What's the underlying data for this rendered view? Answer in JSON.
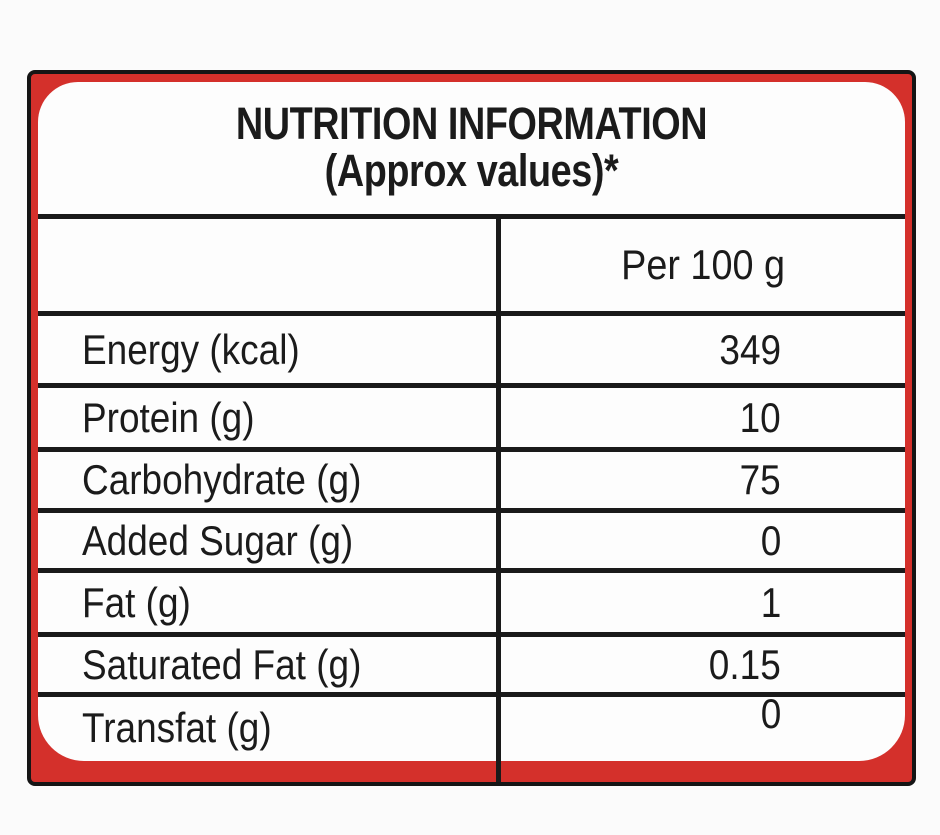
{
  "label": {
    "title_line1": "NUTRITION INFORMATION",
    "title_line2": "(Approx values)*",
    "column_header": "Per 100 g",
    "rows": [
      {
        "name": "Energy (kcal)",
        "value": "349"
      },
      {
        "name": "Protein (g)",
        "value": "10"
      },
      {
        "name": "Carbohydrate (g)",
        "value": "75"
      },
      {
        "name": "Added Sugar (g)",
        "value": "0"
      },
      {
        "name": "Fat (g)",
        "value": "1"
      },
      {
        "name": "Saturated Fat (g)",
        "value": "0.15"
      },
      {
        "name": "Transfat (g)",
        "value": "0"
      }
    ],
    "colors": {
      "frame_red": "#d4302b",
      "border_black": "#151515",
      "line_black": "#1a1a1a",
      "text_black": "#1b1b1b",
      "card_white": "#fdfdfd",
      "page_background": "#fbfbfb"
    }
  }
}
